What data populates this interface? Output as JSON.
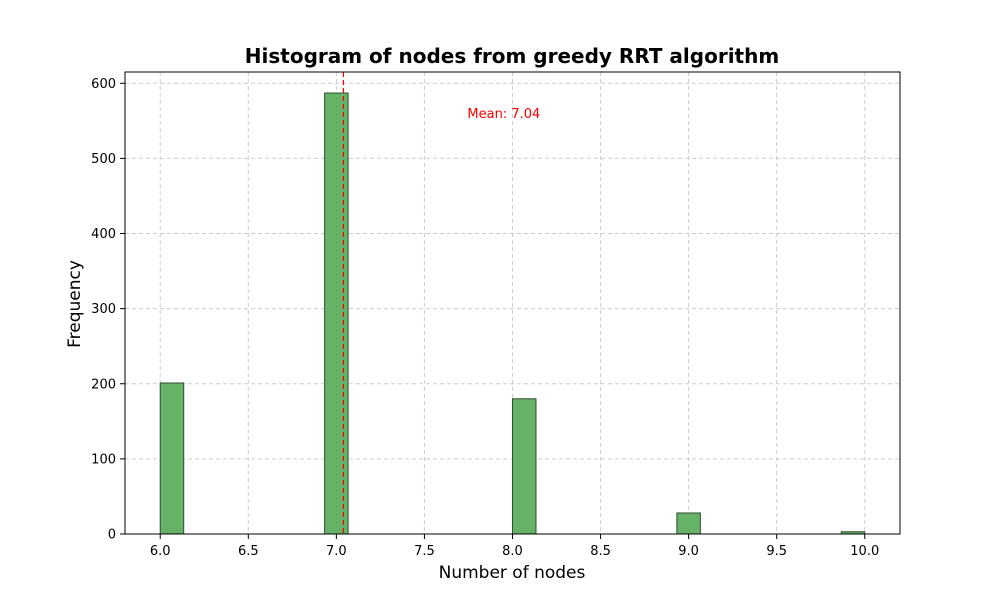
{
  "chart_data": {
    "type": "bar",
    "title": "Histogram of nodes from greedy RRT algorithm",
    "xlabel": "Number of nodes",
    "ylabel": "Frequency",
    "xlim": [
      5.8,
      10.2
    ],
    "ylim": [
      0,
      615
    ],
    "xticks": [
      6.0,
      6.5,
      7.0,
      7.5,
      8.0,
      8.5,
      9.0,
      9.5,
      10.0
    ],
    "xtick_labels": [
      "6.0",
      "6.5",
      "7.0",
      "7.5",
      "8.0",
      "8.5",
      "9.0",
      "9.5",
      "10.0"
    ],
    "yticks": [
      0,
      100,
      200,
      300,
      400,
      500,
      600
    ],
    "ytick_labels": [
      "0",
      "100",
      "200",
      "300",
      "400",
      "500",
      "600"
    ],
    "bin_width": 0.1333,
    "bins": [
      {
        "start": 6.0,
        "value": 201
      },
      {
        "start": 6.9333,
        "value": 587
      },
      {
        "start": 8.0,
        "value": 180
      },
      {
        "start": 8.9333,
        "value": 28
      },
      {
        "start": 9.8667,
        "value": 3
      }
    ],
    "bar_color": "#66b266",
    "bar_edge_color": "#2f4f2f",
    "grid": true,
    "mean": {
      "value": 7.04,
      "label": "Mean: 7.04",
      "color": "#ff0000"
    }
  }
}
